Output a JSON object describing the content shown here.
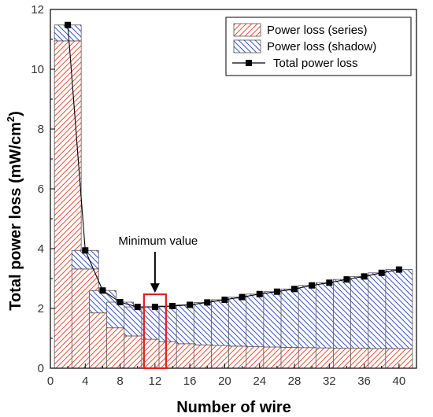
{
  "chart_data": {
    "type": "bar",
    "stacked": true,
    "x": [
      2,
      4,
      6,
      8,
      10,
      12,
      14,
      16,
      18,
      20,
      22,
      24,
      26,
      28,
      30,
      32,
      34,
      36,
      38,
      40
    ],
    "series": [
      {
        "name": "Power loss (series)",
        "color": "#e8503c",
        "pattern": "diagonal-hatch",
        "values": [
          10.95,
          3.32,
          1.85,
          1.35,
          1.08,
          0.97,
          0.88,
          0.82,
          0.78,
          0.76,
          0.74,
          0.72,
          0.71,
          0.7,
          0.69,
          0.68,
          0.67,
          0.67,
          0.66,
          0.66
        ]
      },
      {
        "name": "Power loss (shadow)",
        "color": "#3a52c8",
        "pattern": "back-diagonal-hatch",
        "values": [
          0.53,
          0.62,
          0.75,
          0.86,
          0.97,
          1.08,
          1.2,
          1.3,
          1.42,
          1.53,
          1.64,
          1.76,
          1.85,
          1.95,
          2.08,
          2.18,
          2.3,
          2.4,
          2.53,
          2.64
        ]
      }
    ],
    "line": {
      "name": "Total power loss",
      "color": "#000000",
      "marker": "square",
      "values": [
        11.48,
        3.94,
        2.6,
        2.21,
        2.05,
        2.05,
        2.08,
        2.12,
        2.2,
        2.29,
        2.38,
        2.48,
        2.56,
        2.65,
        2.77,
        2.86,
        2.97,
        3.07,
        3.19,
        3.3
      ]
    },
    "xlabel": "Number of wire",
    "ylabel": "Total power loss (mW/cm",
    "ylabel_sup": "2",
    "ylabel_close": ")",
    "xlim": [
      0,
      42
    ],
    "ylim": [
      0,
      12
    ],
    "xticks": [
      0,
      4,
      8,
      12,
      16,
      20,
      24,
      28,
      32,
      36,
      40
    ],
    "yticks": [
      0,
      2,
      4,
      6,
      8,
      10,
      12
    ],
    "grid": false,
    "legend_position": "top-right",
    "annotation": {
      "text": "Minimum value",
      "x": 12,
      "highlight_color": "#e0201e"
    }
  }
}
